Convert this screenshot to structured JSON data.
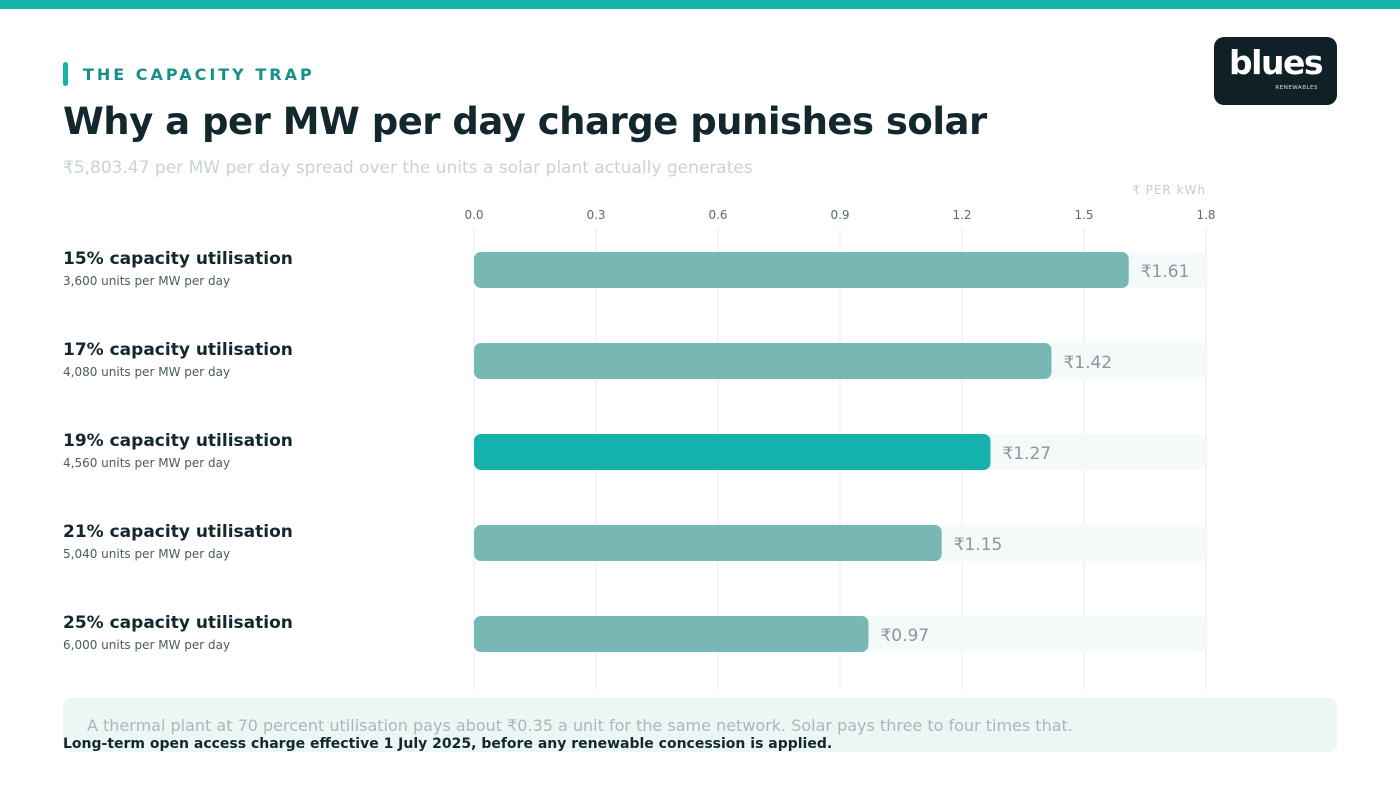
{
  "header": {
    "eyebrow": "THE CAPACITY TRAP",
    "title": "Why a per MW per day charge punishes solar",
    "subtitle": "₹5,803.47 per MW per day spread over the units a solar plant actually generates"
  },
  "logo": {
    "word": "blues",
    "sub": "RENEWABLES"
  },
  "colors": {
    "brand": "#15b2ab",
    "bar_default": "#77b8b4",
    "bar_highlight": "#15b2ab",
    "track": "#f3faf9",
    "grid": "#e6ecec",
    "text_dark": "#12282e"
  },
  "chart_data": {
    "type": "bar",
    "orientation": "horizontal",
    "unit_label": "₹ PER kWh",
    "xlim": [
      0,
      1.8
    ],
    "xticks": [
      "0.0",
      "0.3",
      "0.6",
      "0.9",
      "1.2",
      "1.5",
      "1.8"
    ],
    "grid": true,
    "highlight_index": 2,
    "categories": [
      "15% capacity utilisation",
      "17% capacity utilisation",
      "19% capacity utilisation",
      "21% capacity utilisation",
      "25% capacity utilisation"
    ],
    "sublabels": [
      "3,600 units per MW per day",
      "4,080 units per MW per day",
      "4,560 units per MW per day",
      "5,040 units per MW per day",
      "6,000 units per MW per day"
    ],
    "values": [
      1.61,
      1.42,
      1.27,
      1.15,
      0.97
    ],
    "value_labels": [
      "₹1.61",
      "₹1.42",
      "₹1.27",
      "₹1.15",
      "₹0.97"
    ]
  },
  "note": "A thermal plant at 70 percent utilisation pays about ₹0.35 a unit for the same network. Solar pays three to four times that.",
  "footnote": "Long-term open access charge effective 1 July 2025, before any renewable concession is applied."
}
